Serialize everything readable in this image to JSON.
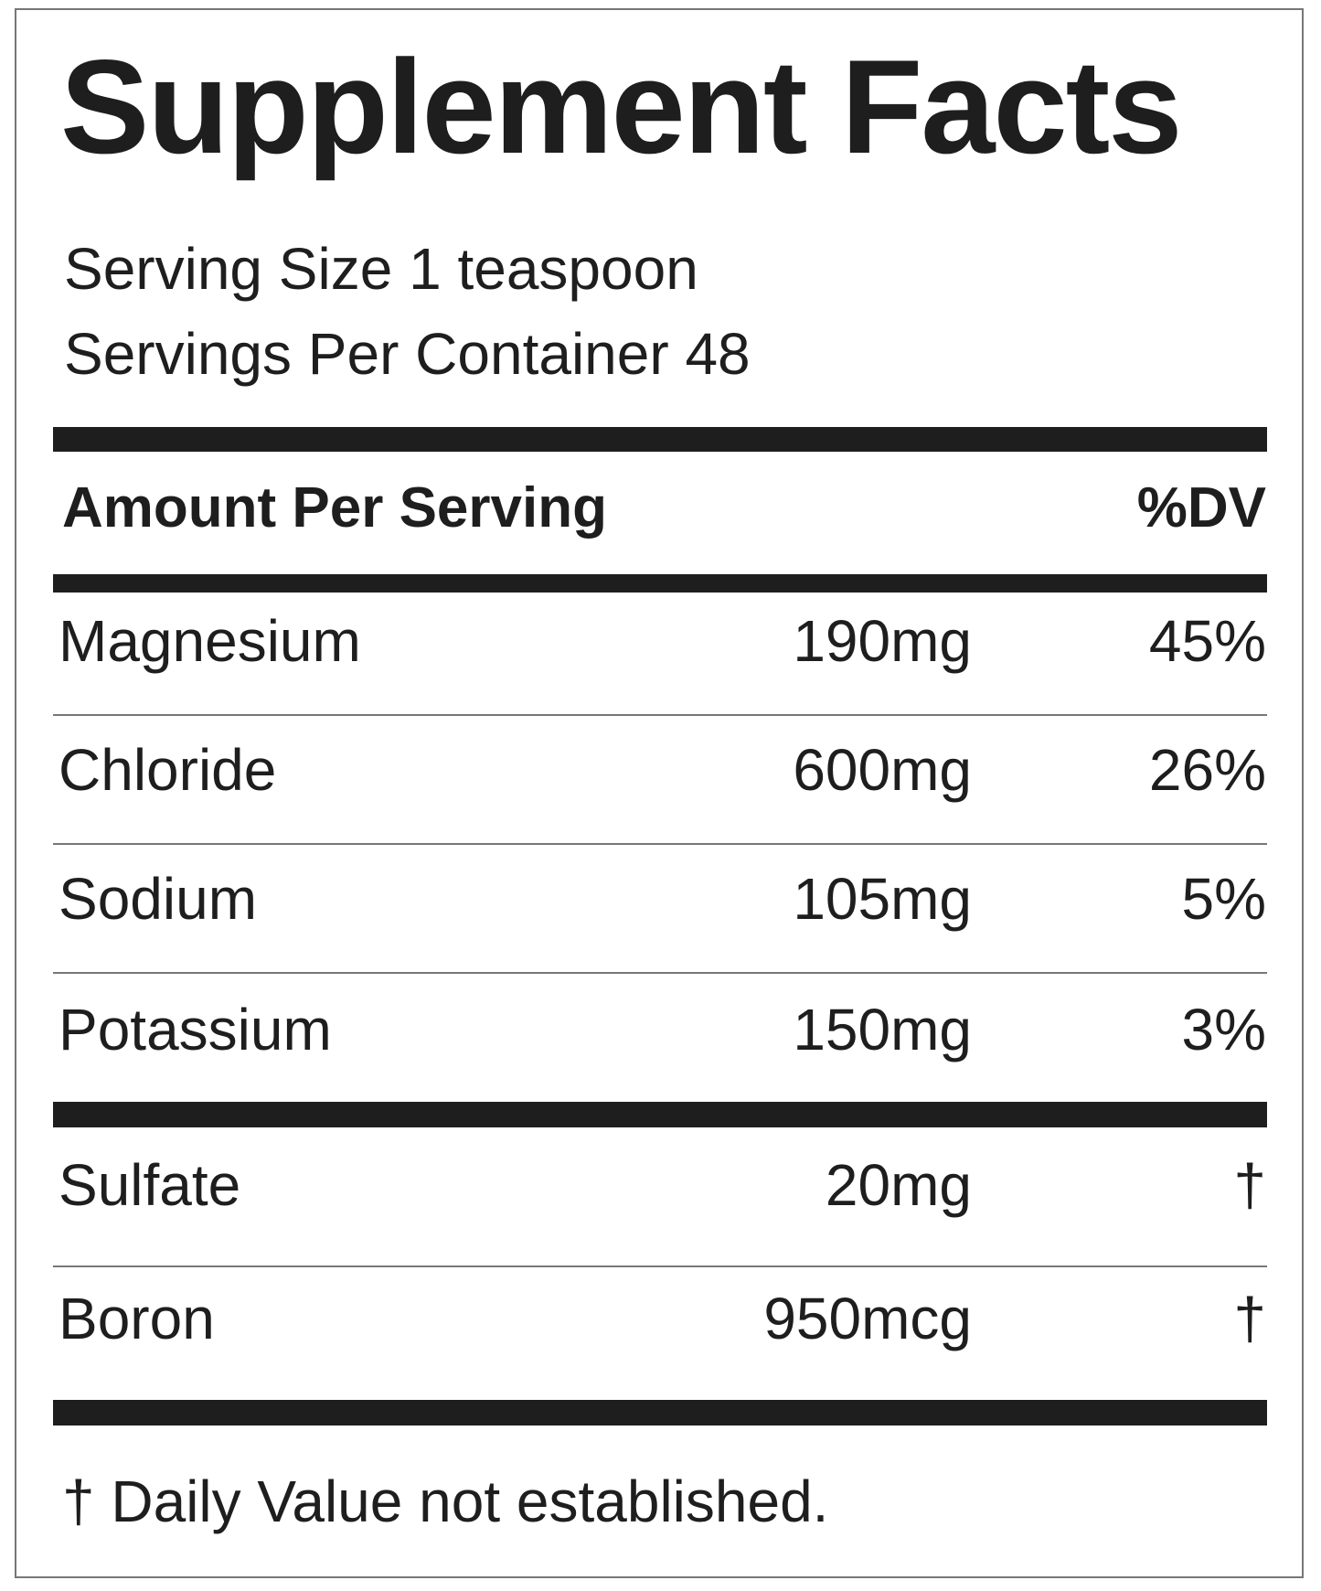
{
  "title": "Supplement Facts",
  "serving_size": "Serving Size 1 teaspoon",
  "servings_per_container": "Servings Per Container 48",
  "header": {
    "amount": "Amount Per Serving",
    "dv": "%DV"
  },
  "rows": [
    {
      "name": "Magnesium",
      "amount": "190mg",
      "dv": "45%"
    },
    {
      "name": "Chloride",
      "amount": "600mg",
      "dv": "26%"
    },
    {
      "name": "Sodium",
      "amount": "105mg",
      "dv": "5%"
    },
    {
      "name": "Potassium",
      "amount": "150mg",
      "dv": "3%"
    },
    {
      "name": "Sulfate",
      "amount": "20mg",
      "dv": "†"
    },
    {
      "name": "Boron",
      "amount": "950mcg",
      "dv": "†"
    }
  ],
  "footnote": "† Daily Value not established."
}
